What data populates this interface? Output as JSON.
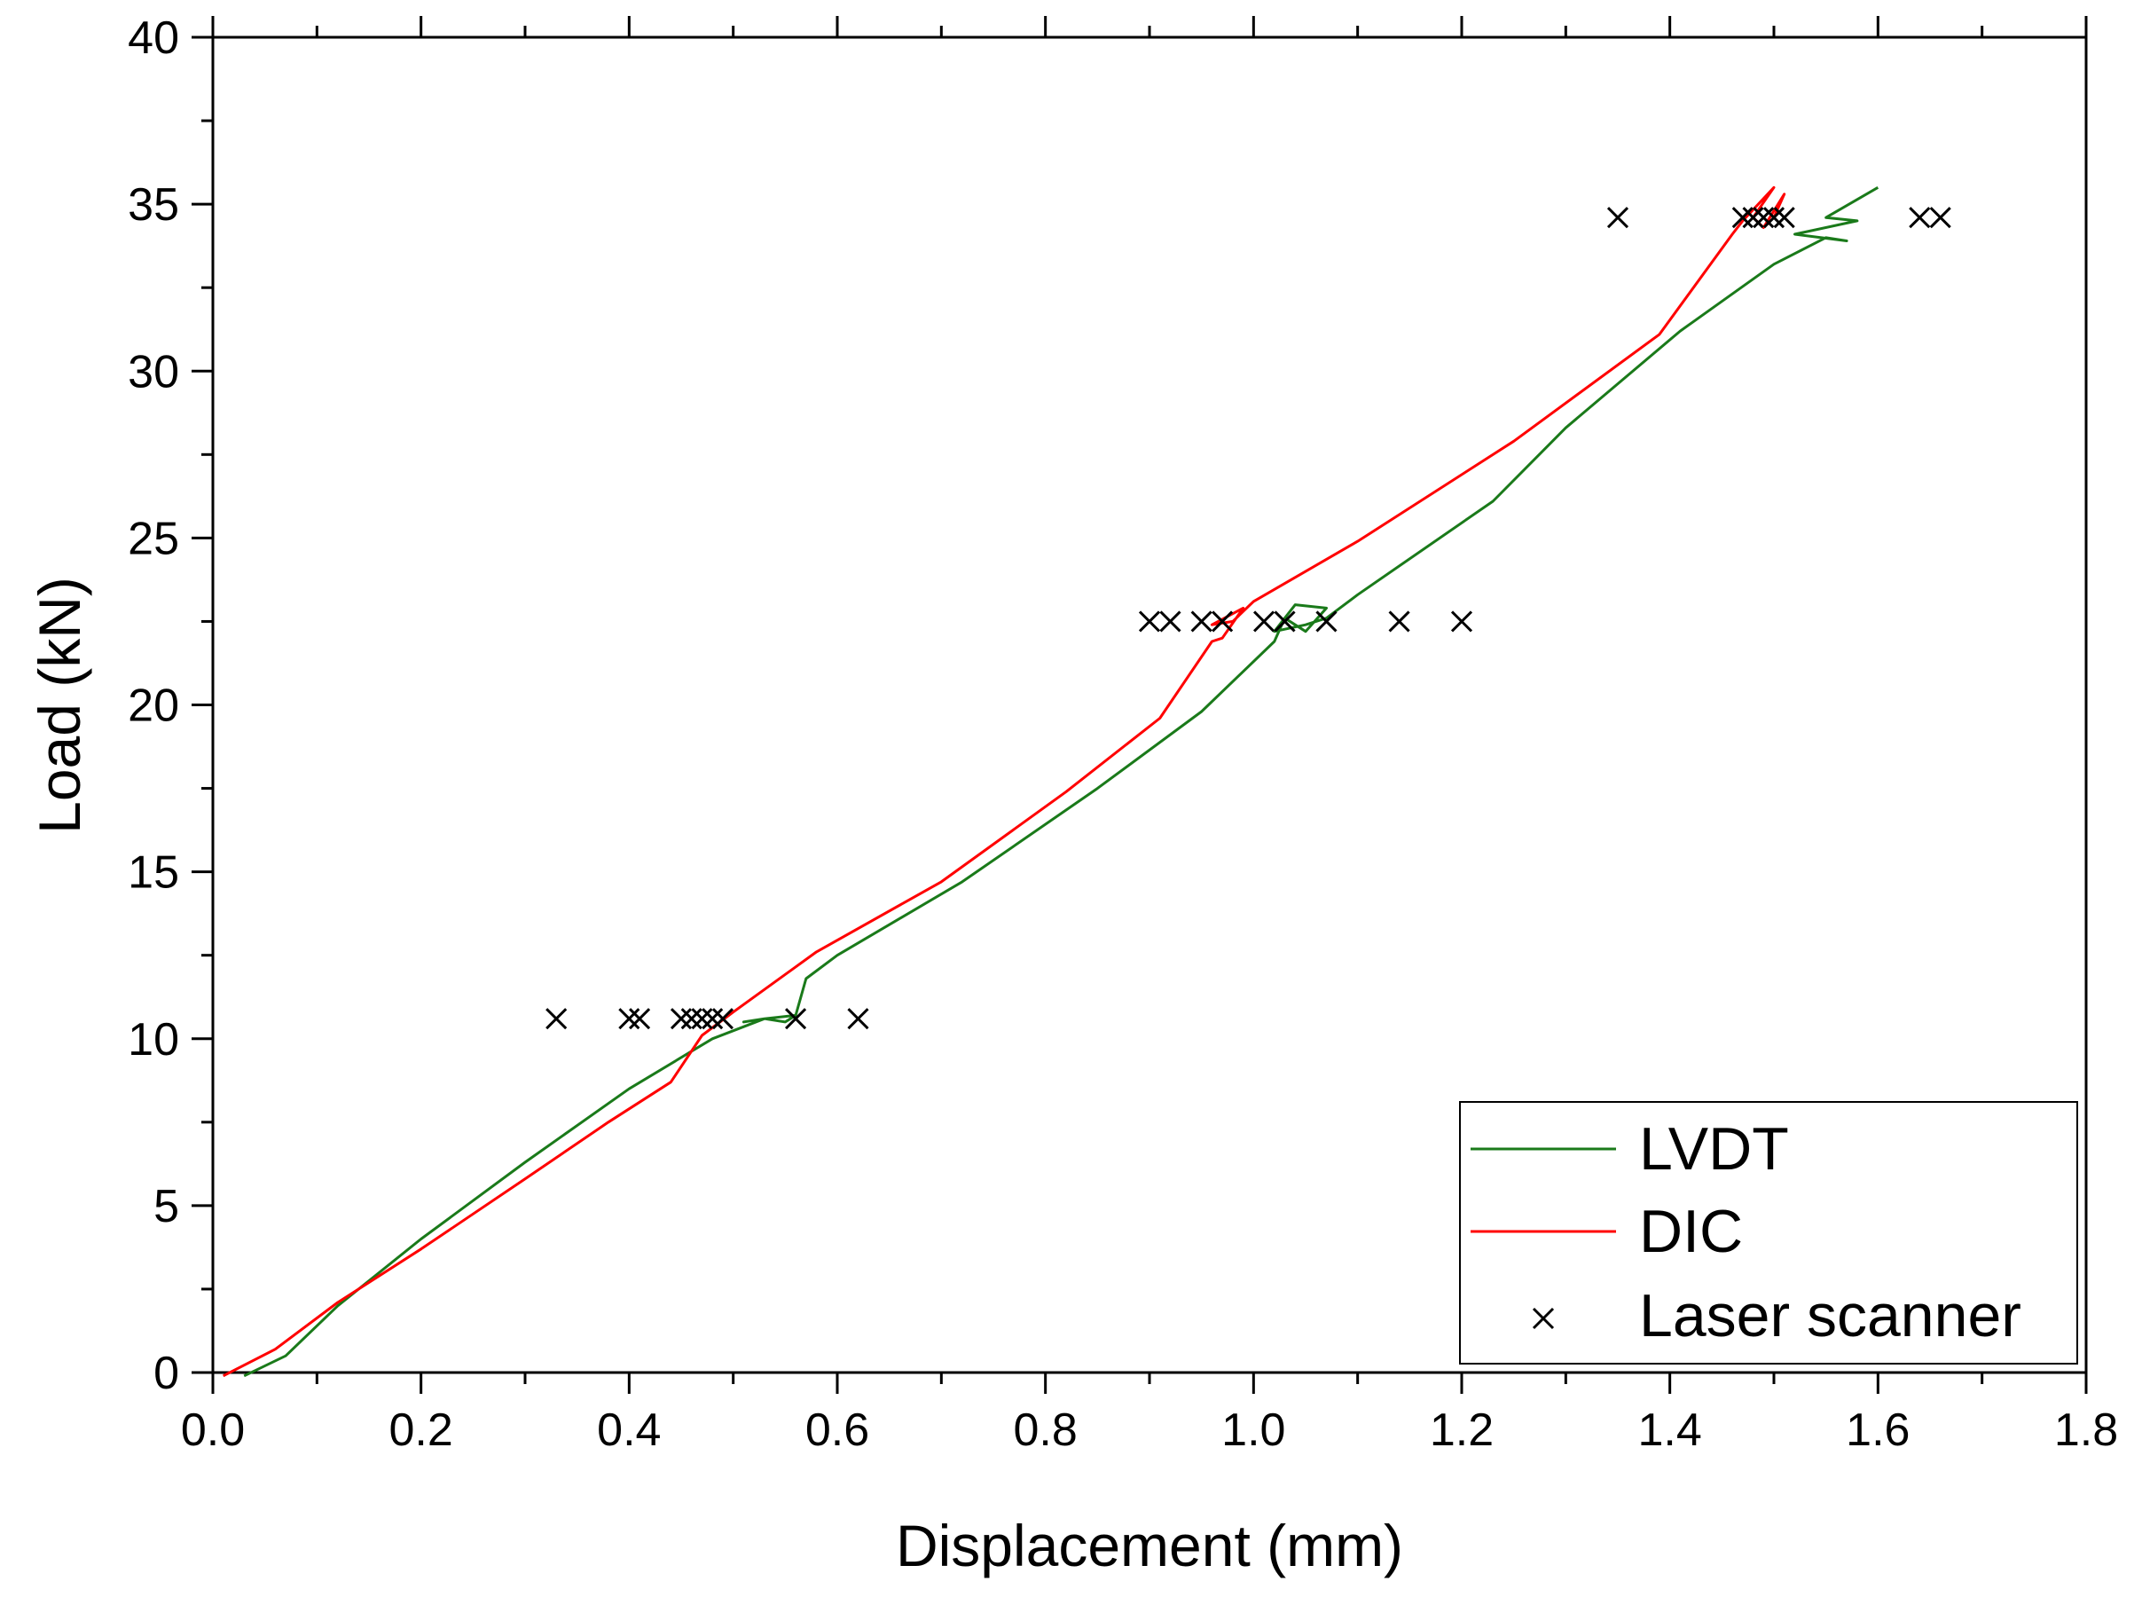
{
  "chart_data": {
    "type": "line",
    "xlabel": "Displacement (mm)",
    "ylabel": "Load (kN)",
    "xlim": [
      0.0,
      1.8
    ],
    "ylim": [
      0,
      40
    ],
    "xticks": [
      "0.0",
      "0.2",
      "0.4",
      "0.6",
      "0.8",
      "1.0",
      "1.2",
      "1.4",
      "1.6",
      "1.8"
    ],
    "yticks": [
      "0",
      "5",
      "10",
      "15",
      "20",
      "25",
      "30",
      "35",
      "40"
    ],
    "grid": false,
    "legend_position": "bottom-right",
    "legend": [
      "LVDT",
      "DIC",
      "Laser scanner"
    ],
    "colors": {
      "LVDT": "#1a7a1a",
      "DIC": "#ff0000",
      "Laser scanner": "#000000"
    },
    "series": [
      {
        "name": "LVDT",
        "kind": "line",
        "x": [
          0.03,
          0.07,
          0.12,
          0.2,
          0.3,
          0.4,
          0.48,
          0.53,
          0.55,
          0.56,
          0.53,
          0.51,
          0.53,
          0.56,
          0.57,
          0.6,
          0.72,
          0.85,
          0.95,
          1.02,
          1.03,
          1.05,
          1.07,
          1.04,
          1.02,
          1.05,
          1.07,
          1.1,
          1.23,
          1.3,
          1.41,
          1.5,
          1.55,
          1.57,
          1.52,
          1.58,
          1.55,
          1.6
        ],
        "y": [
          -0.1,
          0.5,
          2.0,
          4.0,
          6.3,
          8.5,
          10.0,
          10.6,
          10.5,
          10.7,
          10.6,
          10.5,
          10.6,
          10.7,
          11.8,
          12.5,
          14.7,
          17.5,
          19.8,
          21.9,
          22.6,
          22.2,
          22.9,
          23.0,
          22.2,
          22.4,
          22.6,
          23.3,
          26.1,
          28.3,
          31.2,
          33.2,
          34.0,
          33.9,
          34.1,
          34.5,
          34.6,
          35.5
        ]
      },
      {
        "name": "DIC",
        "kind": "line",
        "x": [
          0.01,
          0.06,
          0.12,
          0.2,
          0.3,
          0.38,
          0.44,
          0.47,
          0.5,
          0.58,
          0.7,
          0.82,
          0.91,
          0.96,
          0.97,
          0.99,
          0.96,
          0.98,
          1.0,
          1.1,
          1.25,
          1.39,
          1.46,
          1.47,
          1.5,
          1.48,
          1.49,
          1.51,
          1.5
        ],
        "y": [
          -0.1,
          0.7,
          2.1,
          3.7,
          5.8,
          7.5,
          8.7,
          10.1,
          10.8,
          12.6,
          14.7,
          17.4,
          19.6,
          21.9,
          22.0,
          22.9,
          22.4,
          22.5,
          23.1,
          24.9,
          27.9,
          31.1,
          34.1,
          34.5,
          35.5,
          34.6,
          34.3,
          35.3,
          34.6
        ]
      },
      {
        "name": "Laser scanner",
        "kind": "scatter",
        "x": [
          0.33,
          0.4,
          0.41,
          0.45,
          0.46,
          0.47,
          0.48,
          0.49,
          0.56,
          0.62,
          0.9,
          0.92,
          0.95,
          0.97,
          1.01,
          1.03,
          1.07,
          1.14,
          1.2,
          1.35,
          1.47,
          1.48,
          1.49,
          1.5,
          1.51,
          1.64,
          1.66
        ],
        "y": [
          10.6,
          10.6,
          10.6,
          10.6,
          10.6,
          10.6,
          10.6,
          10.6,
          10.6,
          10.6,
          22.5,
          22.5,
          22.5,
          22.5,
          22.5,
          22.5,
          22.5,
          22.5,
          22.5,
          34.6,
          34.6,
          34.6,
          34.6,
          34.6,
          34.6,
          34.6,
          34.6
        ]
      }
    ]
  }
}
